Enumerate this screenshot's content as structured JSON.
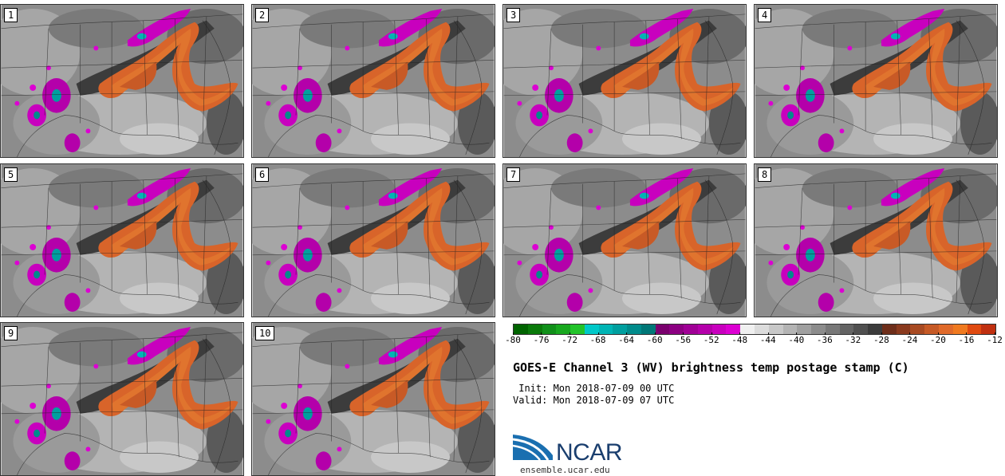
{
  "panels": [
    {
      "label": "1"
    },
    {
      "label": "2"
    },
    {
      "label": "3"
    },
    {
      "label": "4"
    },
    {
      "label": "5"
    },
    {
      "label": "6"
    },
    {
      "label": "7"
    },
    {
      "label": "8"
    },
    {
      "label": "9"
    },
    {
      "label": "10"
    }
  ],
  "colorbar": {
    "ticks": [
      "-80",
      "-76",
      "-72",
      "-68",
      "-64",
      "-60",
      "-56",
      "-52",
      "-48",
      "-44",
      "-40",
      "-36",
      "-32",
      "-28",
      "-24",
      "-20",
      "-16",
      "-12"
    ],
    "colors": [
      "#006400",
      "#0a7a0a",
      "#11901a",
      "#18a81f",
      "#22c32a",
      "#00c8c8",
      "#00b4b4",
      "#009f9f",
      "#008b8b",
      "#007777",
      "#7a006e",
      "#8c0082",
      "#a00096",
      "#b400aa",
      "#c800be",
      "#dc00d2",
      "#f0f0f0",
      "#dcdcdc",
      "#c8c8c8",
      "#b4b4b4",
      "#a0a0a0",
      "#8c8c8c",
      "#787878",
      "#646464",
      "#505050",
      "#3c3c3c",
      "#6e2e1a",
      "#8a3a1e",
      "#a84a22",
      "#c65a26",
      "#e06a2a",
      "#f07a20",
      "#e04a10",
      "#c03010"
    ]
  },
  "title": "GOES-E Channel 3 (WV) brightness temp postage stamp (C)",
  "init": " Init: Mon 2018-07-09 00 UTC",
  "valid": "Valid: Mon 2018-07-09 07 UTC",
  "logo": {
    "text": "NCAR",
    "url": "ensemble.ucar.edu"
  }
}
